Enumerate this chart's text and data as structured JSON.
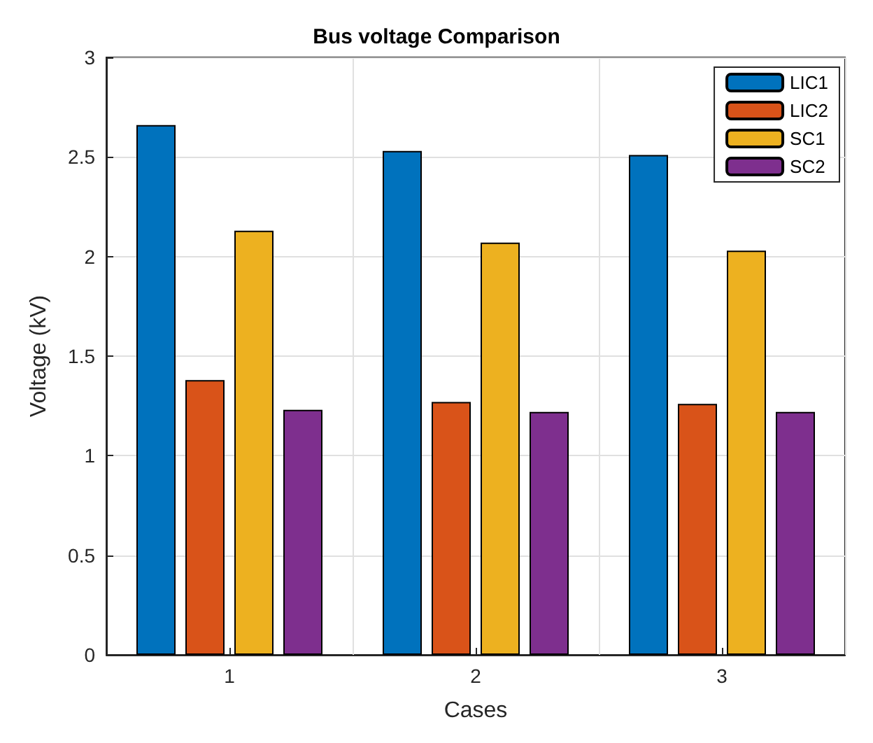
{
  "chart_data": {
    "type": "bar",
    "title": "Bus voltage Comparison",
    "xlabel": "Cases",
    "ylabel": "Voltage (kV)",
    "categories": [
      "1",
      "2",
      "3"
    ],
    "series": [
      {
        "name": "LIC1",
        "color": "#0072bd",
        "values": [
          2.66,
          2.53,
          2.51
        ]
      },
      {
        "name": "LIC2",
        "color": "#d95319",
        "values": [
          1.38,
          1.27,
          1.26
        ]
      },
      {
        "name": "SC1",
        "color": "#edb120",
        "values": [
          2.13,
          2.07,
          2.03
        ]
      },
      {
        "name": "SC2",
        "color": "#7e2f8e",
        "values": [
          1.23,
          1.22,
          1.22
        ]
      }
    ],
    "ylim": [
      0,
      3
    ],
    "yticks": [
      0,
      0.5,
      1,
      1.5,
      2,
      2.5,
      3
    ],
    "grid": true,
    "legend": "top right"
  }
}
